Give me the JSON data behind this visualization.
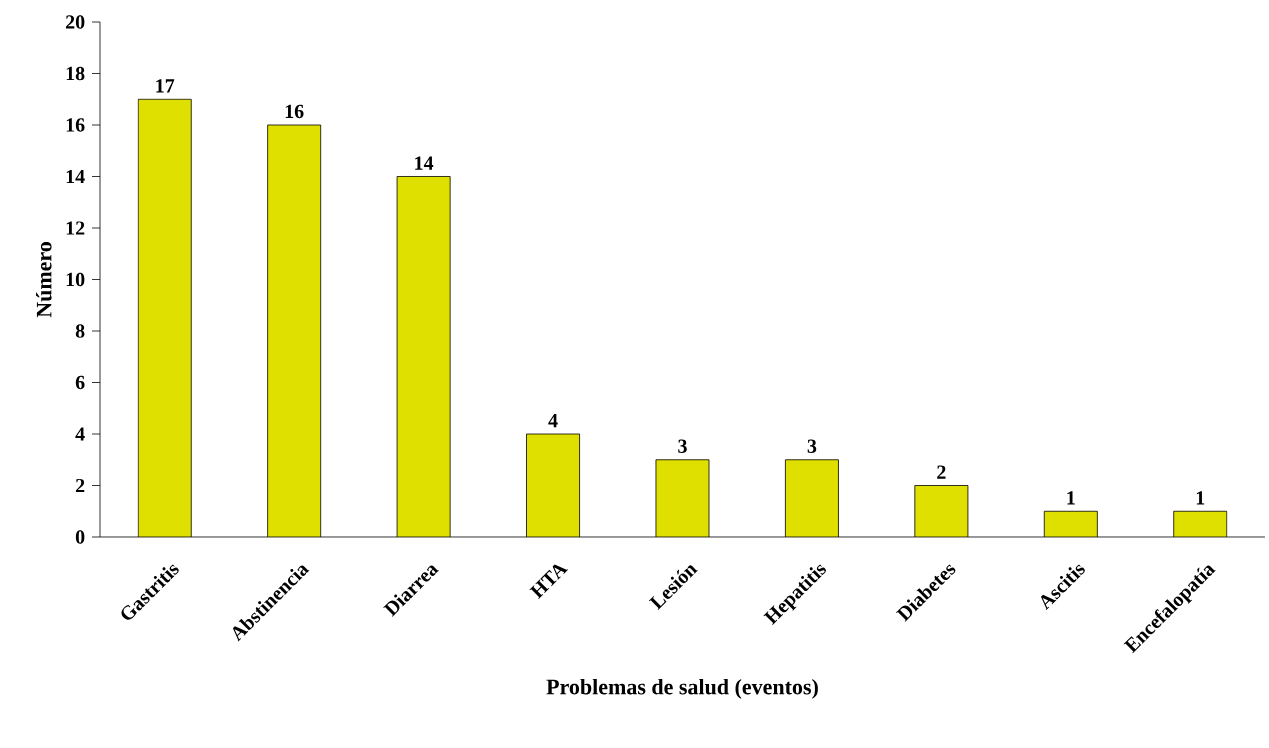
{
  "chart_data": {
    "type": "bar",
    "xlabel": "Problemas de salud (eventos)",
    "ylabel": "Número",
    "categories": [
      "Gastritis",
      "Abstinencia",
      "Diarrea",
      "HTA",
      "Lesión",
      "Hepatitis",
      "Diabetes",
      "Ascitis",
      "Encefalopatía"
    ],
    "values": [
      17,
      16,
      14,
      4,
      3,
      3,
      2,
      1,
      1
    ],
    "color": "#e0e000",
    "ylim": [
      0,
      20
    ],
    "yticks": [
      0,
      2,
      4,
      6,
      8,
      10,
      12,
      14,
      16,
      18,
      20
    ],
    "data_labels": true
  }
}
